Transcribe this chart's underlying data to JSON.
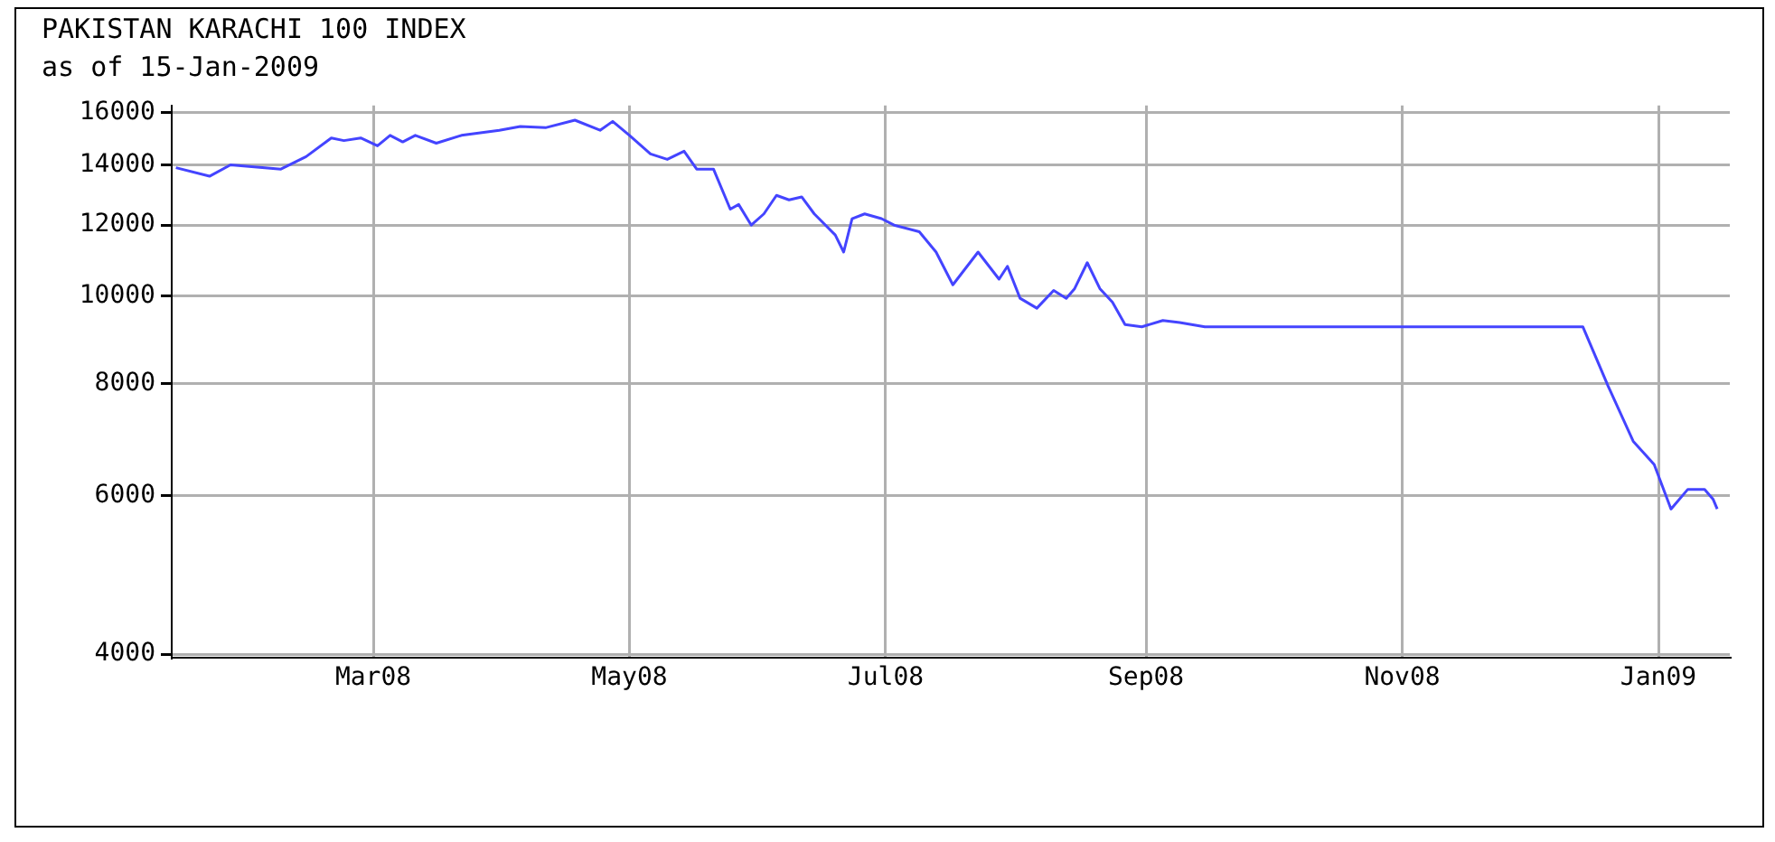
{
  "chart_data": {
    "type": "line",
    "title": "PAKISTAN KARACHI 100 INDEX",
    "subtitle": "as of 15-Jan-2009",
    "x": [
      "2008-01-14",
      "2008-01-22",
      "2008-01-27",
      "2008-02-08",
      "2008-02-14",
      "2008-02-20",
      "2008-02-23",
      "2008-02-27",
      "2008-03-02",
      "2008-03-05",
      "2008-03-08",
      "2008-03-11",
      "2008-03-16",
      "2008-03-22",
      "2008-03-31",
      "2008-04-05",
      "2008-04-11",
      "2008-04-18",
      "2008-04-24",
      "2008-04-27",
      "2008-05-01",
      "2008-05-06",
      "2008-05-10",
      "2008-05-14",
      "2008-05-17",
      "2008-05-21",
      "2008-05-25",
      "2008-05-27",
      "2008-05-30",
      "2008-06-02",
      "2008-06-05",
      "2008-06-08",
      "2008-06-11",
      "2008-06-14",
      "2008-06-19",
      "2008-06-21",
      "2008-06-23",
      "2008-06-26",
      "2008-06-30",
      "2008-07-03",
      "2008-07-09",
      "2008-07-13",
      "2008-07-17",
      "2008-07-23",
      "2008-07-28",
      "2008-07-30",
      "2008-08-02",
      "2008-08-06",
      "2008-08-10",
      "2008-08-13",
      "2008-08-15",
      "2008-08-18",
      "2008-08-21",
      "2008-08-24",
      "2008-08-27",
      "2008-08-31",
      "2008-09-05",
      "2008-09-09",
      "2008-09-15",
      "2008-12-14",
      "2008-12-20",
      "2008-12-26",
      "2008-12-31",
      "2009-01-04",
      "2009-01-08",
      "2009-01-12",
      "2009-01-14",
      "2009-01-15"
    ],
    "series": [
      {
        "color": "#4444ff",
        "values": [
          13900,
          13600,
          14000,
          13850,
          14300,
          15000,
          14900,
          15000,
          14700,
          15100,
          14850,
          15100,
          14800,
          15100,
          15300,
          15450,
          15400,
          15700,
          15300,
          15650,
          15100,
          14400,
          14200,
          14500,
          13850,
          13850,
          12500,
          12650,
          12000,
          12350,
          12950,
          12800,
          12900,
          12350,
          11700,
          11200,
          12200,
          12350,
          12200,
          12000,
          11800,
          11200,
          10300,
          11200,
          10450,
          10800,
          9950,
          9700,
          10150,
          9950,
          10200,
          10900,
          10200,
          9850,
          9300,
          9250,
          9400,
          9350,
          9250,
          9250,
          7950,
          6900,
          6500,
          5800,
          6100,
          6100,
          5950,
          5800
        ]
      }
    ],
    "xlim": [
      "2008-01-13",
      "2009-01-18"
    ],
    "xticks": [
      {
        "value": "2008-03-01",
        "label": "Mar08"
      },
      {
        "value": "2008-05-01",
        "label": "May08"
      },
      {
        "value": "2008-07-01",
        "label": "Jul08"
      },
      {
        "value": "2008-09-01",
        "label": "Sep08"
      },
      {
        "value": "2008-11-01",
        "label": "Nov08"
      },
      {
        "value": "2009-01-01",
        "label": "Jan09"
      }
    ],
    "ylim": [
      3960,
      16300
    ],
    "yticks": [
      4000,
      6000,
      8000,
      10000,
      12000,
      14000,
      16000
    ],
    "log": "y",
    "grid": true,
    "legend": false,
    "marker": "none"
  }
}
